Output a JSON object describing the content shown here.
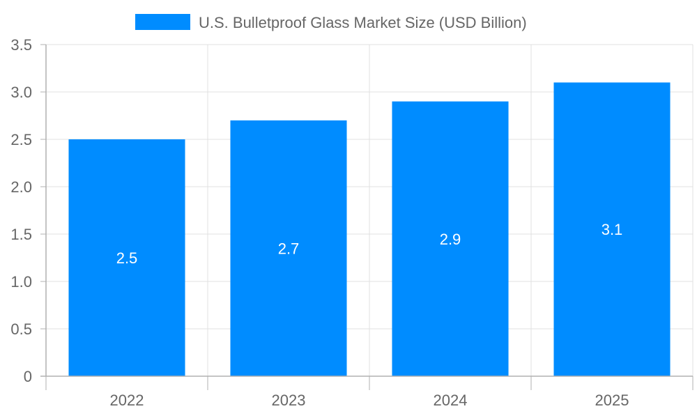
{
  "chart_data": {
    "type": "bar",
    "title": "",
    "xlabel": "",
    "ylabel": "",
    "categories": [
      "2022",
      "2023",
      "2024",
      "2025"
    ],
    "series": [
      {
        "name": "U.S. Bulletproof Glass Market Size (USD Billion)",
        "values": [
          2.5,
          2.7,
          2.9,
          3.1
        ],
        "color": "#008cff"
      }
    ],
    "ylim": [
      0,
      3.5
    ],
    "yticks": [
      0,
      0.5,
      1.0,
      1.5,
      2.0,
      2.5,
      3.0,
      3.5
    ],
    "ytick_labels": [
      "0",
      "0.5",
      "1.0",
      "1.5",
      "2.0",
      "2.5",
      "3.0",
      "3.5"
    ],
    "data_labels": [
      "2.5",
      "2.7",
      "2.9",
      "3.1"
    ],
    "grid": true,
    "legend_position": "top",
    "colors": {
      "text": "#666666",
      "grid": "#e0e0e0",
      "axis": "#b0b0b0",
      "data_label": "#ffffff"
    }
  }
}
